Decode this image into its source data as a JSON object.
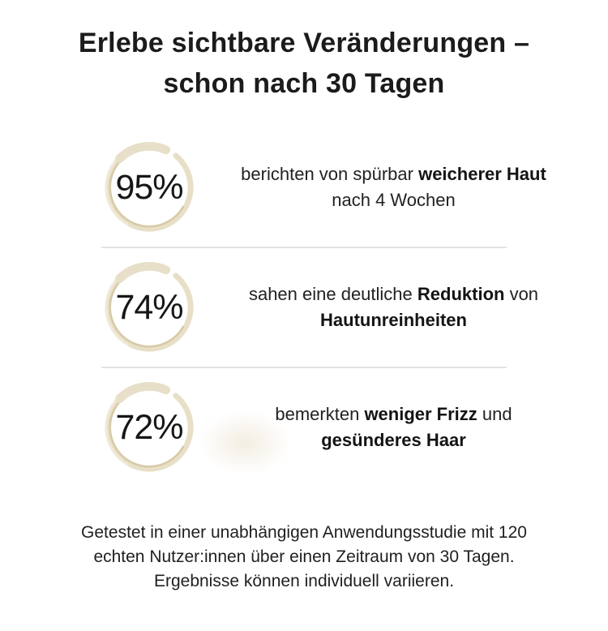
{
  "theme": {
    "background": "#ffffff",
    "text_primary": "#1b1b1b",
    "text_secondary": "#222222",
    "ring_main": "#e8dfc8",
    "ring_dark": "#d2c49e",
    "ring_light": "#f2ecdd",
    "divider": "#e2e2e2"
  },
  "title": "Erlebe sichtbare Veränderungen –\nschon nach 30 Tagen",
  "stats": [
    {
      "value": "95%",
      "segments": [
        {
          "t": "berichten von spürbar "
        },
        {
          "t": "weicherer Haut",
          "b": true
        },
        {
          "t": "\nnach 4 Wochen"
        }
      ]
    },
    {
      "value": "74%",
      "segments": [
        {
          "t": "sahen eine deutliche "
        },
        {
          "t": "Reduktion",
          "b": true
        },
        {
          "t": " von\n"
        },
        {
          "t": "Hautunreinheiten",
          "b": true
        }
      ]
    },
    {
      "value": "72%",
      "segments": [
        {
          "t": "bemerkten "
        },
        {
          "t": "weniger Frizz",
          "b": true
        },
        {
          "t": " und\n"
        },
        {
          "t": "gesünderes Haar",
          "b": true
        }
      ]
    }
  ],
  "footnote": "Getestet in einer unabhängigen Anwendungsstudie mit 120\nechten Nutzer:innen über einen Zeitraum von 30 Tagen.\nErgebnisse können individuell variieren."
}
